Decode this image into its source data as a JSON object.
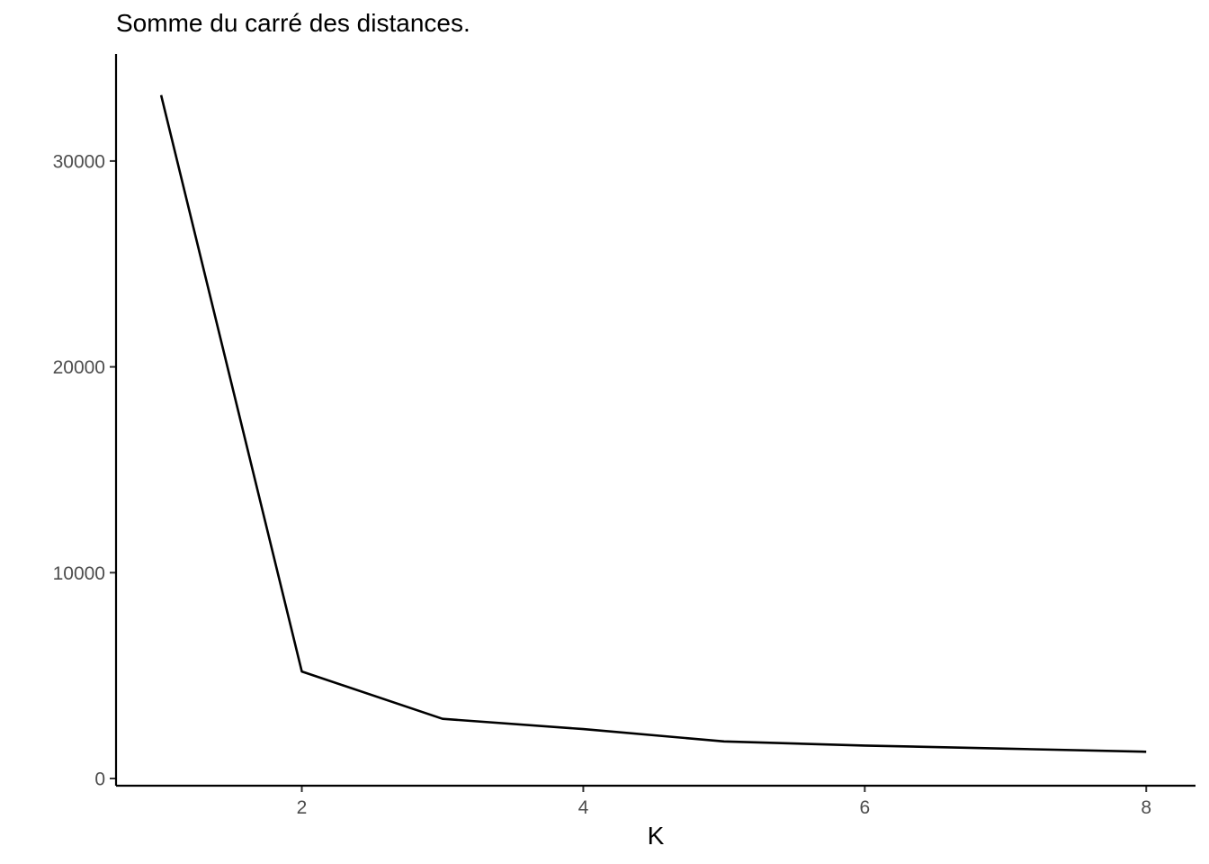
{
  "chart_data": {
    "type": "line",
    "title": "Somme du carré des distances.",
    "xlabel": "K",
    "ylabel": "",
    "x": [
      1,
      2,
      3,
      4,
      5,
      6,
      7,
      8
    ],
    "series": [
      {
        "values": [
          33200,
          5200,
          2900,
          2400,
          1800,
          1600,
          1450,
          1300
        ]
      }
    ],
    "xlim": [
      0.68,
      8.35
    ],
    "ylim": [
      -350,
      35200
    ],
    "x_ticks": [
      2,
      4,
      6,
      8
    ],
    "x_tick_labels": [
      "2",
      "4",
      "6",
      "8"
    ],
    "y_ticks": [
      0,
      10000,
      20000,
      30000
    ],
    "y_tick_labels": [
      "0",
      "10000",
      "20000",
      "30000"
    ],
    "grid": false,
    "legend": "none",
    "colors": {
      "line": "#000000",
      "axis": "#000000",
      "tick_label": "#4d4d4d"
    }
  }
}
